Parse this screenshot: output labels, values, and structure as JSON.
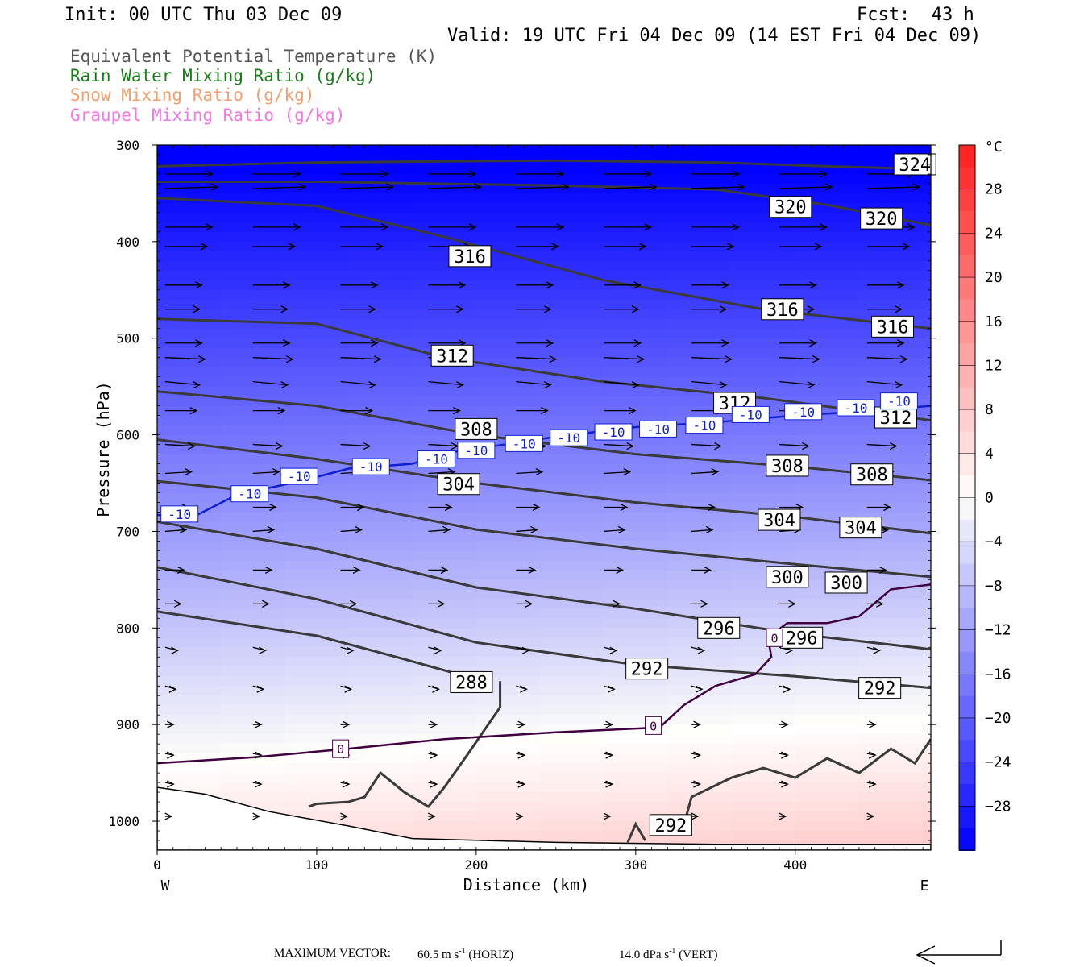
{
  "header": {
    "init": "Init: 00 UTC Thu 03 Dec 09",
    "fcst": "Fcst:  43 h",
    "valid": "Valid: 19 UTC Fri 04 Dec 09 (14 EST Fri 04 Dec 09)"
  },
  "fields": [
    {
      "label": "Equivalent Potential Temperature (K)",
      "color": "#555555"
    },
    {
      "label": "Rain Water Mixing Ratio (g/kg)",
      "color": "#1a7a1a"
    },
    {
      "label": "Snow Mixing Ratio (g/kg)",
      "color": "#f0a070"
    },
    {
      "label": "Graupel Mixing Ratio (g/kg)",
      "color": "#f07ae0"
    }
  ],
  "footer": {
    "max_vector_label": "MAXIMUM VECTOR:",
    "horiz_value": "60.5 m s",
    "horiz_unit": "(HORIZ)",
    "vert_value": "14.0 dPa s",
    "vert_unit": "(VERT)",
    "exponent": "-1"
  },
  "chart_data": {
    "type": "contour cross-section",
    "xlabel": "Distance (km)",
    "ylabel": "Pressure (hPa)",
    "xlim": [
      0,
      485
    ],
    "ylim": [
      1030,
      300
    ],
    "x_ticks": [
      0,
      100,
      200,
      300,
      400
    ],
    "y_ticks": [
      300,
      400,
      500,
      600,
      700,
      800,
      900,
      1000
    ],
    "x_end_labels": {
      "left": "W",
      "right": "E"
    },
    "colorbar": {
      "unit": "°C",
      "ticks": [
        28,
        24,
        20,
        16,
        12,
        8,
        4,
        0,
        -4,
        -8,
        -12,
        -16,
        -20,
        -24,
        -28
      ],
      "range": [
        -32,
        32
      ]
    },
    "theta_e_contours": [
      {
        "value": 324,
        "points": [
          [
            0,
            322
          ],
          [
            100,
            318
          ],
          [
            250,
            316
          ],
          [
            350,
            318
          ],
          [
            420,
            322
          ],
          [
            485,
            325
          ]
        ]
      },
      {
        "value": 320,
        "points": [
          [
            0,
            338
          ],
          [
            100,
            338
          ],
          [
            250,
            342
          ],
          [
            350,
            346
          ],
          [
            420,
            362
          ],
          [
            485,
            383
          ]
        ]
      },
      {
        "value": 316,
        "points": [
          [
            0,
            355
          ],
          [
            100,
            363
          ],
          [
            180,
            395
          ],
          [
            280,
            440
          ],
          [
            380,
            470
          ],
          [
            485,
            490
          ]
        ]
      },
      {
        "value": 312,
        "points": [
          [
            0,
            480
          ],
          [
            100,
            485
          ],
          [
            180,
            520
          ],
          [
            280,
            545
          ],
          [
            380,
            562
          ],
          [
            485,
            585
          ]
        ]
      },
      {
        "value": 308,
        "points": [
          [
            0,
            555
          ],
          [
            100,
            570
          ],
          [
            200,
            600
          ],
          [
            300,
            620
          ],
          [
            400,
            633
          ],
          [
            485,
            647
          ]
        ]
      },
      {
        "value": 304,
        "points": [
          [
            0,
            605
          ],
          [
            100,
            625
          ],
          [
            200,
            650
          ],
          [
            300,
            670
          ],
          [
            400,
            685
          ],
          [
            485,
            702
          ]
        ]
      },
      {
        "value": 300,
        "points": [
          [
            0,
            648
          ],
          [
            100,
            665
          ],
          [
            200,
            698
          ],
          [
            300,
            718
          ],
          [
            400,
            734
          ],
          [
            485,
            747
          ]
        ]
      },
      {
        "value": 296,
        "points": [
          [
            0,
            690
          ],
          [
            100,
            718
          ],
          [
            200,
            758
          ],
          [
            300,
            780
          ],
          [
            400,
            806
          ],
          [
            485,
            822
          ]
        ]
      },
      {
        "value": 292,
        "points": [
          [
            0,
            737
          ],
          [
            100,
            770
          ],
          [
            200,
            815
          ],
          [
            300,
            838
          ],
          [
            400,
            850
          ],
          [
            485,
            862
          ]
        ]
      },
      {
        "value": 288,
        "points": [
          [
            0,
            783
          ],
          [
            100,
            808
          ],
          [
            150,
            830
          ],
          [
            200,
            853
          ]
        ]
      }
    ],
    "theta_e_labels": [
      {
        "value": 324,
        "x": 475,
        "p": 320
      },
      {
        "value": 320,
        "x": 397,
        "p": 364
      },
      {
        "value": 320,
        "x": 454,
        "p": 376
      },
      {
        "value": 316,
        "x": 196,
        "p": 415
      },
      {
        "value": 316,
        "x": 392,
        "p": 470
      },
      {
        "value": 316,
        "x": 461,
        "p": 488
      },
      {
        "value": 312,
        "x": 185,
        "p": 518
      },
      {
        "value": 312,
        "x": 362,
        "p": 567
      },
      {
        "value": 312,
        "x": 463,
        "p": 582
      },
      {
        "value": 308,
        "x": 200,
        "p": 594
      },
      {
        "value": 308,
        "x": 395,
        "p": 632
      },
      {
        "value": 308,
        "x": 448,
        "p": 641
      },
      {
        "value": 304,
        "x": 189,
        "p": 651
      },
      {
        "value": 304,
        "x": 390,
        "p": 688
      },
      {
        "value": 304,
        "x": 441,
        "p": 696
      },
      {
        "value": 300,
        "x": 395,
        "p": 747
      },
      {
        "value": 300,
        "x": 432,
        "p": 753
      },
      {
        "value": 296,
        "x": 352,
        "p": 800
      },
      {
        "value": 296,
        "x": 404,
        "p": 810
      },
      {
        "value": 292,
        "x": 307,
        "p": 842
      },
      {
        "value": 292,
        "x": 453,
        "p": 862
      },
      {
        "value": 288,
        "x": 197,
        "p": 856
      },
      {
        "value": 292,
        "x": 322,
        "p": 1004
      }
    ],
    "temp_minus10_contour": {
      "value": -10,
      "points": [
        [
          0,
          683
        ],
        [
          25,
          683
        ],
        [
          50,
          662
        ],
        [
          90,
          648
        ],
        [
          120,
          635
        ],
        [
          160,
          630
        ],
        [
          185,
          618
        ],
        [
          210,
          612
        ],
        [
          250,
          602
        ],
        [
          300,
          592
        ],
        [
          350,
          587
        ],
        [
          400,
          580
        ],
        [
          450,
          575
        ],
        [
          485,
          570
        ]
      ],
      "labels": [
        [
          14,
          682
        ],
        [
          58,
          661
        ],
        [
          89,
          643
        ],
        [
          134,
          633
        ],
        [
          175,
          625
        ],
        [
          200,
          616
        ],
        [
          230,
          609
        ],
        [
          258,
          603
        ],
        [
          286,
          597
        ],
        [
          314,
          594
        ],
        [
          343,
          590
        ],
        [
          372,
          579
        ],
        [
          405,
          576
        ],
        [
          438,
          572
        ],
        [
          465,
          565
        ]
      ]
    },
    "temp_zero_contour": {
      "value": 0,
      "points": [
        [
          0,
          940
        ],
        [
          60,
          934
        ],
        [
          120,
          925
        ],
        [
          180,
          915
        ],
        [
          250,
          908
        ],
        [
          315,
          903
        ],
        [
          330,
          880
        ],
        [
          350,
          860
        ],
        [
          375,
          848
        ],
        [
          385,
          830
        ],
        [
          383,
          810
        ],
        [
          395,
          795
        ],
        [
          420,
          795
        ],
        [
          440,
          788
        ],
        [
          460,
          760
        ],
        [
          485,
          755
        ]
      ],
      "labels": [
        [
          115,
          925
        ],
        [
          311,
          901
        ],
        [
          387,
          810
        ]
      ]
    },
    "vectors_note": "Wind vectors shown in the cross-section plane"
  }
}
